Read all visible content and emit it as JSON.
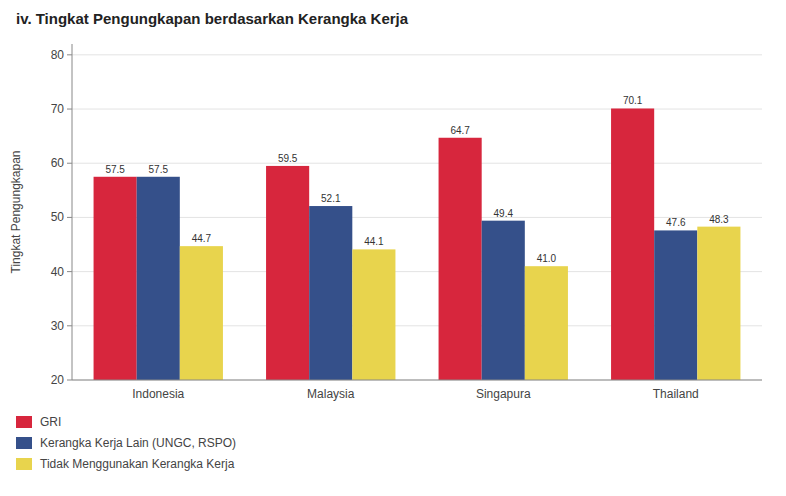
{
  "chart_data": {
    "type": "bar",
    "title": "iv. Tingkat Pengungkapan berdasarkan Kerangka Kerja",
    "ylabel": "Tingkat Pengungkapan",
    "categories": [
      "Indonesia",
      "Malaysia",
      "Singapura",
      "Thailand"
    ],
    "series": [
      {
        "name": "GRI",
        "color": "#d7263d",
        "values": [
          57.5,
          59.5,
          64.7,
          70.1
        ],
        "value_labels": [
          "57.5",
          "59.5",
          "64.7",
          "70.1"
        ]
      },
      {
        "name": "Kerangka Kerja Lain (UNGC,  RSPO)",
        "color": "#35508a",
        "values": [
          57.5,
          52.1,
          49.4,
          47.6
        ],
        "value_labels": [
          "57.5",
          "52.1",
          "49.4",
          "47.6"
        ]
      },
      {
        "name": "Tidak Menggunakan Kerangka Kerja",
        "color": "#e8d44d",
        "values": [
          44.7,
          44.1,
          41.0,
          48.3
        ],
        "value_labels": [
          "44.7",
          "44.1",
          "41.0",
          "48.3"
        ]
      }
    ],
    "ylim": [
      20,
      82
    ],
    "yticks": [
      20,
      30,
      40,
      50,
      60,
      70,
      80
    ],
    "grid": true,
    "data_labels": true,
    "legend": "lower left"
  }
}
